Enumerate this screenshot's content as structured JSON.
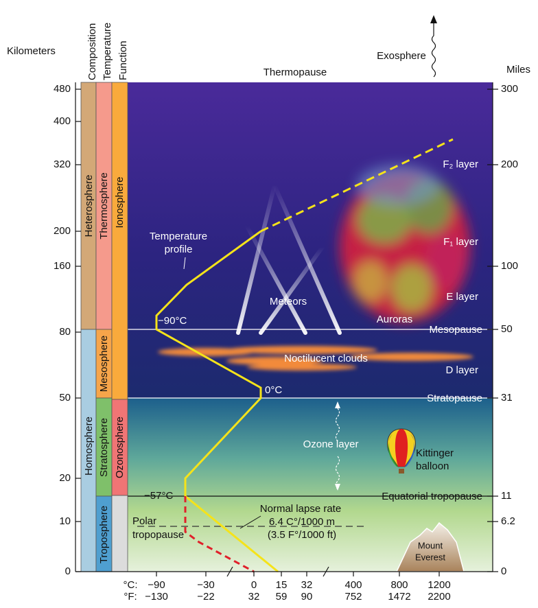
{
  "left_axis": {
    "title": "Kilometers",
    "ticks": [
      "480",
      "400",
      "320",
      "200",
      "160",
      "80",
      "50",
      "20",
      "10",
      "0"
    ]
  },
  "right_axis": {
    "title": "Miles",
    "ticks": [
      "300",
      "200",
      "100",
      "50",
      "31",
      "11",
      "6.2",
      "0"
    ]
  },
  "columns": {
    "headers": [
      "Composition",
      "Temperature",
      "Function"
    ],
    "composition": [
      "Heterosphere",
      "Homosphere"
    ],
    "temperature": [
      "Thermosphere",
      "Mesosphere",
      "Stratosphere",
      "Troposphere"
    ],
    "function": [
      "Ionosphere",
      "Ozonosphere"
    ]
  },
  "bottom_axis": {
    "celsius_label": "°C:",
    "fahrenheit_label": "°F:",
    "celsius": [
      "−90",
      "−30",
      "0",
      "15",
      "32",
      "400",
      "800",
      "1200"
    ],
    "fahrenheit": [
      "−130",
      "−22",
      "32",
      "59",
      "90",
      "752",
      "1472",
      "2200"
    ]
  },
  "labels": {
    "thermopause": "Thermopause",
    "exosphere": "Exosphere",
    "f2_layer": "F₂ layer",
    "f1_layer": "F₁ layer",
    "e_layer": "E layer",
    "d_layer": "D layer",
    "temperature_profile": [
      "Temperature",
      "profile"
    ],
    "meteors": "Meteors",
    "auroras": "Auroras",
    "minus90": "−90°C",
    "mesopause": "Mesopause",
    "noctilucent_clouds": "Noctilucent clouds",
    "zero_c": "0°C",
    "stratopause": "Stratopause",
    "ozone_layer": "Ozone layer",
    "kittinger_balloon": [
      "Kittinger",
      "balloon"
    ],
    "minus57": "−57°C",
    "equatorial_tropopause": "Equatorial tropopause",
    "normal_lapse_rate": [
      "Normal lapse rate",
      "6.4 C°/1000 m",
      "(3.5 F°/1000 ft)"
    ],
    "polar_tropopause": [
      "Polar",
      "tropopause"
    ],
    "mount_everest": [
      "Mount",
      "Everest"
    ]
  }
}
